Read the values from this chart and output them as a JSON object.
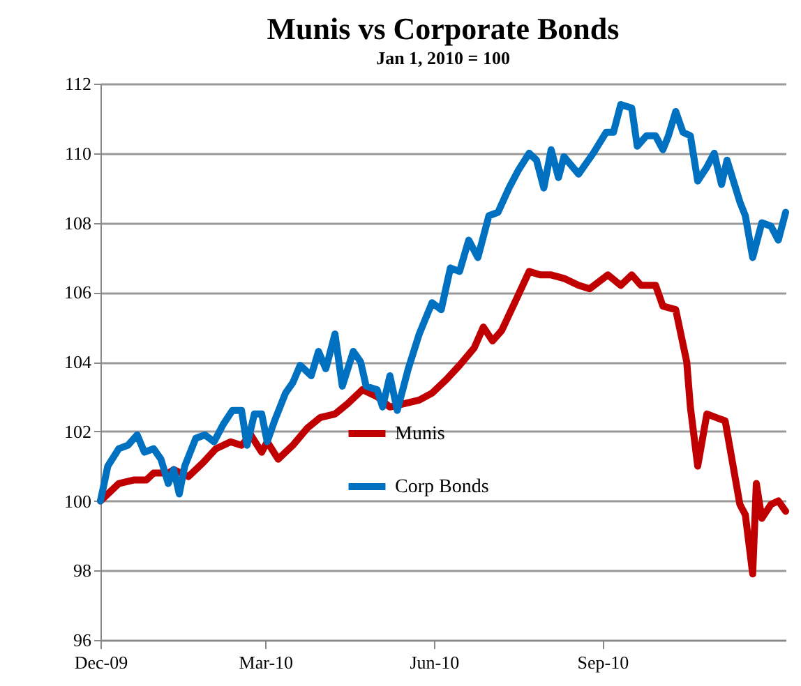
{
  "chart_data": {
    "type": "line",
    "title": "Munis vs Corporate Bonds",
    "subtitle": "Jan 1, 2010 = 100",
    "xlim": [
      "2009-12-01",
      "2010-12-10"
    ],
    "xticks": [
      {
        "value": "2009-12-01",
        "label": "Dec-09"
      },
      {
        "value": "2010-03-01",
        "label": "Mar-10"
      },
      {
        "value": "2010-06-01",
        "label": "Jun-10"
      },
      {
        "value": "2010-09-01",
        "label": "Sep-10"
      }
    ],
    "ylim": [
      96,
      112
    ],
    "yticks": [
      96,
      98,
      100,
      102,
      104,
      106,
      108,
      110,
      112
    ],
    "grid": "y",
    "legend": "bottom",
    "line_style": "solid",
    "series": [
      {
        "name": "Munis",
        "color": "#c00000",
        "x": [
          "2009-12-01",
          "2009-12-11",
          "2009-12-19",
          "2009-12-26",
          "2009-12-30",
          "2010-01-07",
          "2010-01-10",
          "2010-01-18",
          "2010-01-26",
          "2010-02-02",
          "2010-02-10",
          "2010-02-16",
          "2010-02-21",
          "2010-02-27",
          "2010-03-02",
          "2010-03-08",
          "2010-03-16",
          "2010-03-24",
          "2010-03-31",
          "2010-04-08",
          "2010-04-15",
          "2010-04-23",
          "2010-05-01",
          "2010-05-08",
          "2010-05-16",
          "2010-05-24",
          "2010-05-31",
          "2010-06-08",
          "2010-06-15",
          "2010-06-23",
          "2010-06-28",
          "2010-07-03",
          "2010-07-08",
          "2010-07-16",
          "2010-07-23",
          "2010-07-29",
          "2010-08-04",
          "2010-08-11",
          "2010-08-19",
          "2010-08-25",
          "2010-08-30",
          "2010-09-04",
          "2010-09-11",
          "2010-09-17",
          "2010-09-22",
          "2010-09-30",
          "2010-10-04",
          "2010-10-11",
          "2010-10-17",
          "2010-10-19",
          "2010-10-23",
          "2010-10-28",
          "2010-11-02",
          "2010-11-07",
          "2010-11-15",
          "2010-11-18",
          "2010-11-22",
          "2010-11-24",
          "2010-11-27",
          "2010-12-02",
          "2010-12-06",
          "2010-12-10"
        ],
        "values": [
          100.0,
          100.5,
          100.6,
          100.6,
          100.8,
          100.8,
          100.9,
          100.7,
          101.1,
          101.5,
          101.7,
          101.6,
          101.9,
          101.4,
          101.7,
          101.2,
          101.6,
          102.1,
          102.4,
          102.5,
          102.8,
          103.2,
          103.0,
          102.7,
          102.8,
          102.9,
          103.1,
          103.5,
          103.9,
          104.4,
          105.0,
          104.6,
          104.9,
          105.8,
          106.6,
          106.5,
          106.5,
          106.4,
          106.2,
          106.1,
          106.3,
          106.5,
          106.2,
          106.5,
          106.2,
          106.2,
          105.6,
          105.5,
          104.0,
          102.7,
          101.0,
          102.5,
          102.4,
          102.3,
          99.9,
          99.6,
          97.9,
          100.5,
          99.5,
          99.9,
          100.0,
          99.7
        ]
      },
      {
        "name": "Corp Bonds",
        "color": "#0070c0",
        "x": [
          "2009-12-01",
          "2009-12-05",
          "2009-12-11",
          "2009-12-16",
          "2009-12-21",
          "2009-12-25",
          "2009-12-30",
          "2010-01-03",
          "2010-01-07",
          "2010-01-10",
          "2010-01-13",
          "2010-01-16",
          "2010-01-22",
          "2010-01-27",
          "2010-02-01",
          "2010-02-06",
          "2010-02-11",
          "2010-02-16",
          "2010-02-19",
          "2010-02-23",
          "2010-02-27",
          "2010-03-02",
          "2010-03-06",
          "2010-03-12",
          "2010-03-16",
          "2010-03-20",
          "2010-03-26",
          "2010-03-30",
          "2010-04-03",
          "2010-04-08",
          "2010-04-12",
          "2010-04-18",
          "2010-04-22",
          "2010-04-25",
          "2010-05-01",
          "2010-05-04",
          "2010-05-08",
          "2010-05-12",
          "2010-05-15",
          "2010-05-18",
          "2010-05-24",
          "2010-05-31",
          "2010-06-05",
          "2010-06-10",
          "2010-06-15",
          "2010-06-20",
          "2010-06-25",
          "2010-07-01",
          "2010-07-06",
          "2010-07-12",
          "2010-07-17",
          "2010-07-23",
          "2010-07-27",
          "2010-07-31",
          "2010-08-04",
          "2010-08-08",
          "2010-08-11",
          "2010-08-19",
          "2010-08-27",
          "2010-09-03",
          "2010-09-07",
          "2010-09-11",
          "2010-09-17",
          "2010-09-20",
          "2010-09-25",
          "2010-09-30",
          "2010-10-04",
          "2010-10-07",
          "2010-10-11",
          "2010-10-15",
          "2010-10-19",
          "2010-10-23",
          "2010-10-28",
          "2010-11-01",
          "2010-11-05",
          "2010-11-08",
          "2010-11-15",
          "2010-11-18",
          "2010-11-22",
          "2010-11-27",
          "2010-12-02",
          "2010-12-06",
          "2010-12-10"
        ],
        "values": [
          100.0,
          101.0,
          101.5,
          101.6,
          101.9,
          101.4,
          101.5,
          101.2,
          100.5,
          100.9,
          100.2,
          101.0,
          101.8,
          101.9,
          101.7,
          102.2,
          102.6,
          102.6,
          101.6,
          102.5,
          102.5,
          101.7,
          102.3,
          103.1,
          103.4,
          103.9,
          103.6,
          104.3,
          103.8,
          104.8,
          103.3,
          104.3,
          104.0,
          103.3,
          103.2,
          102.7,
          103.6,
          102.6,
          103.2,
          103.8,
          104.8,
          105.7,
          105.5,
          106.7,
          106.6,
          107.5,
          107.0,
          108.2,
          108.3,
          109.0,
          109.5,
          110.0,
          109.8,
          109.0,
          110.1,
          109.3,
          109.9,
          109.4,
          110.0,
          110.6,
          110.6,
          111.4,
          111.3,
          110.2,
          110.5,
          110.5,
          110.1,
          110.5,
          111.2,
          110.6,
          110.5,
          109.2,
          109.6,
          110.0,
          109.1,
          109.8,
          108.6,
          108.2,
          107.0,
          108.0,
          107.9,
          107.5,
          108.3
        ]
      }
    ]
  }
}
